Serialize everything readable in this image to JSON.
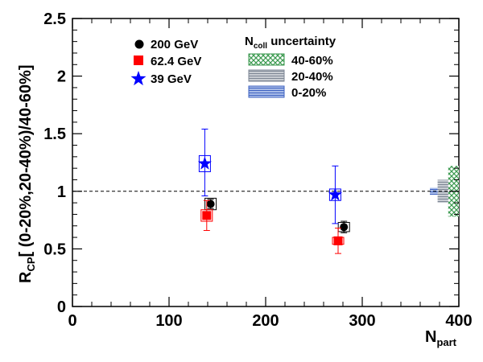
{
  "chart_data": {
    "type": "scatter",
    "title": "",
    "xlabel": {
      "main": "N",
      "sub": "part"
    },
    "ylabel": {
      "prefix": "R",
      "sub": "CP",
      "rest": "[ (0-20%,20-40%)/40-60%]"
    },
    "xlim": [
      0,
      400
    ],
    "ylim": [
      0,
      2.5
    ],
    "xticks": [
      0,
      100,
      200,
      300,
      400
    ],
    "yticks": [
      0,
      0.5,
      1,
      1.5,
      2,
      2.5
    ],
    "reference_line": 1.0,
    "grid": false,
    "legend_placement": "top-left",
    "series": [
      {
        "name": "200 GeV",
        "marker": "circle",
        "color": "#000000",
        "points": [
          {
            "x": 143,
            "y": 0.89,
            "err_lo": 0.04,
            "err_hi": 0.04,
            "sys": 0.05
          },
          {
            "x": 281,
            "y": 0.69,
            "err_lo": 0.05,
            "err_hi": 0.05,
            "sys": 0.04
          }
        ]
      },
      {
        "name": "62.4 GeV",
        "marker": "square",
        "color": "#ff0000",
        "points": [
          {
            "x": 139,
            "y": 0.79,
            "err_lo": 0.13,
            "err_hi": 0.13,
            "sys": 0.05
          },
          {
            "x": 275,
            "y": 0.57,
            "err_lo": 0.11,
            "err_hi": 0.11,
            "sys": 0.03
          }
        ]
      },
      {
        "name": "39 GeV",
        "marker": "star",
        "color": "#0000ff",
        "points": [
          {
            "x": 137,
            "y": 1.24,
            "err_lo": 0.28,
            "err_hi": 0.3,
            "sys": 0.07
          },
          {
            "x": 272,
            "y": 0.97,
            "err_lo": 0.25,
            "err_hi": 0.25,
            "sys": 0.05
          }
        ]
      }
    ],
    "uncertainty_legend": {
      "title_main": "N",
      "title_sub": "coll",
      "title_rest": " uncertainty",
      "entries": [
        {
          "label": "40-60%",
          "pattern": "crosshatch",
          "color": "#3c9a50",
          "half_width": 0.22
        },
        {
          "label": "20-40%",
          "pattern": "horizontal-gray",
          "color": "#8c96a5",
          "half_width": 0.1
        },
        {
          "label": "0-20%",
          "pattern": "horizontal-blue",
          "color": "#4a6ec8",
          "half_width": 0.03
        }
      ]
    }
  }
}
